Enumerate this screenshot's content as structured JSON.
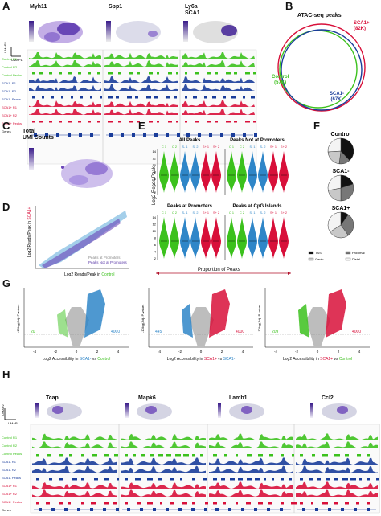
{
  "panels": {
    "A": "A",
    "B": "B",
    "C": "C",
    "D": "D",
    "E": "E",
    "F": "F",
    "G": "G",
    "H": "H"
  },
  "colors": {
    "control": "#3cc11d",
    "sca1_minus": "#1a3d9a",
    "sca1_plus": "#d8103a",
    "sca1_minus_violin": "#2f86c8",
    "grey": "#bdbdbd",
    "purple": "#6a45b8"
  },
  "panelA": {
    "genes": [
      "Myh11",
      "Spp1",
      "Ly6a"
    ],
    "gene_sub": "SCA1",
    "umap_x": "UMAP1",
    "umap_y": "UMAP2",
    "tracks": [
      "Control R1",
      "Control R2",
      "Control Peaks",
      "SCA1- R1",
      "SCA1- R2",
      "SCA1- Peaks",
      "SCA1+ R1",
      "SCA1+ R2",
      "SCA1+ Peaks",
      "Genes"
    ]
  },
  "panelB": {
    "title": "ATAC-seq peaks",
    "sca1_plus": "SCA1+",
    "sca1_plus_n": "(82K)",
    "control": "Control",
    "control_n": "(57K)",
    "sca1_minus": "SCA1-",
    "sca1_minus_n": "(67K)"
  },
  "panelC": {
    "title_line1": "Total",
    "title_line2": "UMI Counts"
  },
  "panelD": {
    "ylabel_pre": "Log2 Reads/Peak in ",
    "ylabel_group": "SCA1+",
    "xlabel_pre": "Log2 Reads/Peak in ",
    "xlabel_group": "Control",
    "legend1": "Peaks at Promoters",
    "legend2": "Peaks Not at Promoters"
  },
  "panelE": {
    "ylabel": "Log2 Reads/Peak",
    "xlabel": "Proportion of Peaks",
    "groups": [
      "C 1",
      "C 2",
      "S- 1",
      "S- 2",
      "S+ 1",
      "S+ 2"
    ],
    "yticks": [
      "14",
      "12",
      "10",
      "8",
      "6",
      "4",
      "2"
    ],
    "subplots": [
      {
        "title": "All Peaks"
      },
      {
        "title": "Peaks Not at Promoters"
      },
      {
        "title": "Peaks at Promoters"
      },
      {
        "title": "Peaks at CpG Islands"
      }
    ]
  },
  "panelF": {
    "pies": [
      {
        "title": "Control",
        "fractions": [
          0.38,
          0.14,
          0.22,
          0.26
        ]
      },
      {
        "title": "SCA1-",
        "fractions": [
          0.2,
          0.3,
          0.22,
          0.28
        ]
      },
      {
        "title": "SCA1+",
        "fractions": [
          0.1,
          0.3,
          0.26,
          0.34
        ]
      }
    ],
    "legend": [
      "TSS",
      "Proximal",
      "Genic",
      "Distal"
    ]
  },
  "panelG": {
    "ylabel": "-10log(Adj. P-value)",
    "xticks": [
      "-4",
      "-2",
      "0",
      "2",
      "4"
    ],
    "plots": [
      {
        "left_n": "20",
        "right_n": "4000",
        "x_pre": "Log2 Accessibility in ",
        "x_a": "SCA1-",
        "x_mid": " vs ",
        "x_b": "Control"
      },
      {
        "left_n": "445",
        "right_n": "4000",
        "x_pre": "Log2 Accessibility in ",
        "x_a": "SCA1+",
        "x_mid": " vs ",
        "x_b": "SCA1-"
      },
      {
        "left_n": "209",
        "right_n": "4000",
        "x_pre": "Log2 Accessibility in ",
        "x_a": "SCA1+",
        "x_mid": " vs ",
        "x_b": "Control"
      }
    ]
  },
  "panelH": {
    "genes": [
      "Tcap",
      "Mapk6",
      "Lamb1",
      "Ccl2"
    ],
    "umap_x": "UMAP1",
    "umap_y": "UMAP2",
    "tracks": [
      "Control R1",
      "Control R2",
      "Control Peaks",
      "SCA1- R1",
      "SCA1- R2",
      "SCA1- Peaks",
      "SCA1+ R1",
      "SCA1+ R2",
      "SCA1+ Peaks",
      "Genes"
    ]
  }
}
